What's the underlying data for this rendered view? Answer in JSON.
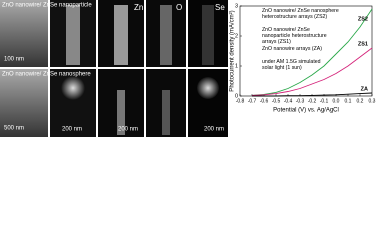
{
  "images": {
    "sem_top": "ZnO nanowire/ ZnSe nanoparticle",
    "sem_top_scale": "100 nm",
    "sem_bottom": "ZnO nanowire/ ZnSe nanosphere",
    "sem_bottom_scale": "500 nm",
    "zn": "Zn",
    "o": "O",
    "se": "Se",
    "scale_b2": "200 nm",
    "scale_b3": "200 nm",
    "scale_b5": "200 nm"
  },
  "chart_data": {
    "type": "line",
    "xlabel": "Potential (V) vs. Ag/AgCl",
    "ylabel": "Photocurrent density (mA/cm²)",
    "x": [
      -0.7,
      -0.6,
      -0.5,
      -0.4,
      -0.3,
      -0.2,
      -0.1,
      0,
      0.1,
      0.2,
      0.3
    ],
    "series": [
      {
        "name": "ZS2",
        "color": "#2aa84a",
        "values": [
          0.02,
          0.05,
          0.12,
          0.25,
          0.45,
          0.7,
          1.0,
          1.4,
          1.8,
          2.3,
          2.9
        ]
      },
      {
        "name": "ZS1",
        "color": "#d4237a",
        "values": [
          0.02,
          0.04,
          0.08,
          0.15,
          0.25,
          0.4,
          0.55,
          0.75,
          1.0,
          1.3,
          1.6
        ]
      },
      {
        "name": "ZA",
        "color": "#000000",
        "values": [
          0,
          0,
          0,
          0.01,
          0.01,
          0.02,
          0.03,
          0.04,
          0.06,
          0.08,
          0.1
        ]
      }
    ],
    "annotations": [
      "ZnO nanowire/ ZnSe nanosphere heterostructure arrays (ZS2)",
      "ZnO nanowire/ ZnSe nanoparticle heterostructure arrays (ZS1)",
      "ZnO nanowire arrays (ZA)",
      "under AM 1.5G simulated solar light (1 sun)"
    ],
    "xlim": [
      -0.8,
      0.3
    ],
    "ylim": [
      0,
      3
    ],
    "xticks": [
      -0.8,
      -0.7,
      -0.6,
      -0.5,
      -0.4,
      -0.3,
      -0.2,
      -0.1,
      {
        "value": 0,
        "label": "0.0"
      },
      0.1,
      0.2,
      0.3
    ],
    "yticks": [
      0,
      1,
      2,
      3
    ]
  }
}
